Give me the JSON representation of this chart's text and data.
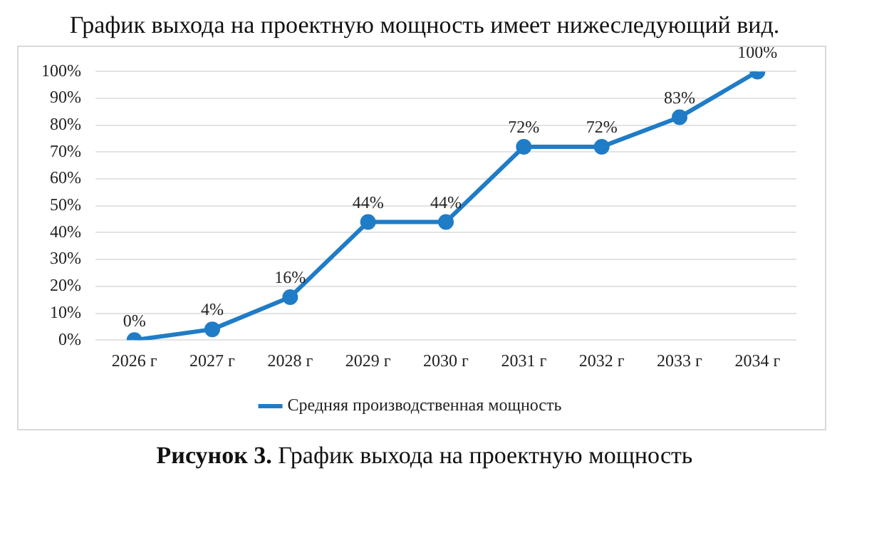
{
  "chart_data": {
    "type": "line",
    "title": "График выхода на проектную мощность имеет нижеследующий вид.",
    "categories": [
      "2026 г",
      "2027 г",
      "2028 г",
      "2029 г",
      "2030 г",
      "2031 г",
      "2032 г",
      "2033 г",
      "2034 г"
    ],
    "series": [
      {
        "name": "Средняя производственная мощность",
        "color": "#1f7cc7",
        "values": [
          0,
          4,
          16,
          44,
          44,
          72,
          72,
          83,
          100
        ],
        "value_labels": [
          "0%",
          "4%",
          "16%",
          "44%",
          "44%",
          "72%",
          "72%",
          "83%",
          "100%"
        ]
      }
    ],
    "ylim": [
      0,
      100
    ],
    "yticks": [
      {
        "value": 0,
        "label": "0%"
      },
      {
        "value": 10,
        "label": "10%"
      },
      {
        "value": 20,
        "label": "20%"
      },
      {
        "value": 30,
        "label": "30%"
      },
      {
        "value": 40,
        "label": "40%"
      },
      {
        "value": 50,
        "label": "50%"
      },
      {
        "value": 60,
        "label": "60%"
      },
      {
        "value": 70,
        "label": "70%"
      },
      {
        "value": 80,
        "label": "80%"
      },
      {
        "value": 90,
        "label": "90%"
      },
      {
        "value": 100,
        "label": "100%"
      }
    ],
    "grid": "y",
    "legend": "bottom",
    "marker": "circle",
    "line_style": "solid",
    "annotations": [
      "Рисунок 3. График выхода на проектную мощность"
    ]
  }
}
